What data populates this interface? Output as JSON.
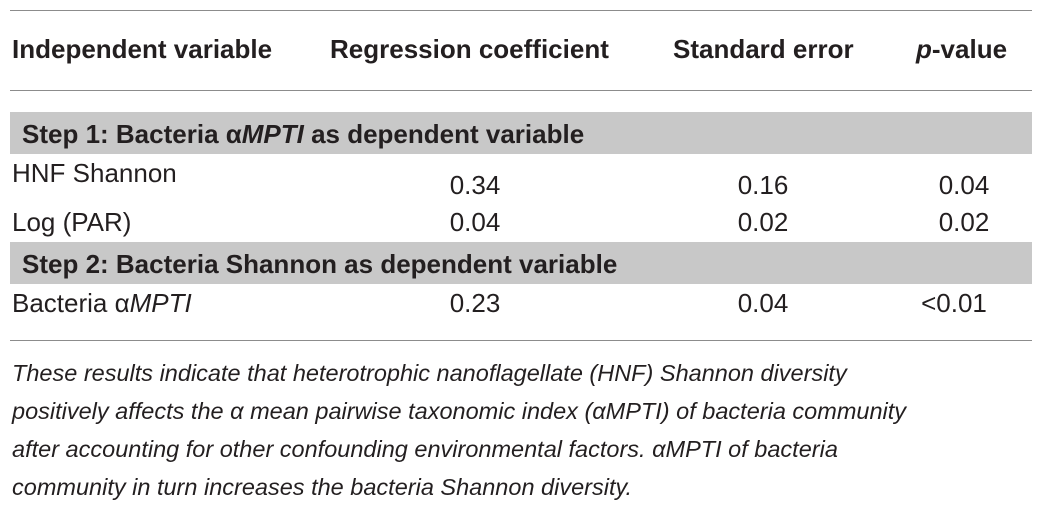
{
  "table": {
    "headers": {
      "independent_variable": "Independent variable",
      "regression_coefficient": "Regression coefficient",
      "standard_error": "Standard error",
      "p_value_prefix": "p",
      "p_value_suffix": "-value"
    },
    "sections": [
      {
        "label_prefix": "Step 1: Bacteria ",
        "label_greek": "α",
        "label_italic": "MPTI",
        "label_suffix": " as dependent variable",
        "rows": [
          {
            "variable": "HNF Shannon",
            "coefficient": "0.34",
            "std_error": "0.16",
            "p_value": "0.04"
          },
          {
            "variable": "Log (PAR)",
            "coefficient": "0.04",
            "std_error": "0.02",
            "p_value": "0.02"
          }
        ]
      },
      {
        "label": "Step 2: Bacteria Shannon as dependent variable",
        "rows": [
          {
            "variable_prefix": "Bacteria ",
            "variable_greek": "α",
            "variable_italic": "MPTI",
            "coefficient": "0.23",
            "std_error": "0.04",
            "p_value": "<0.01"
          }
        ]
      }
    ]
  },
  "footnote": {
    "lines": [
      "These results indicate that heterotrophic nanoflagellate (HNF) Shannon diversity",
      "positively affects the α mean pairwise taxonomic index (αMPTI) of bacteria community",
      "after accounting for other confounding environmental factors. αMPTI of bacteria",
      "community in turn increases the bacteria Shannon diversity."
    ]
  }
}
